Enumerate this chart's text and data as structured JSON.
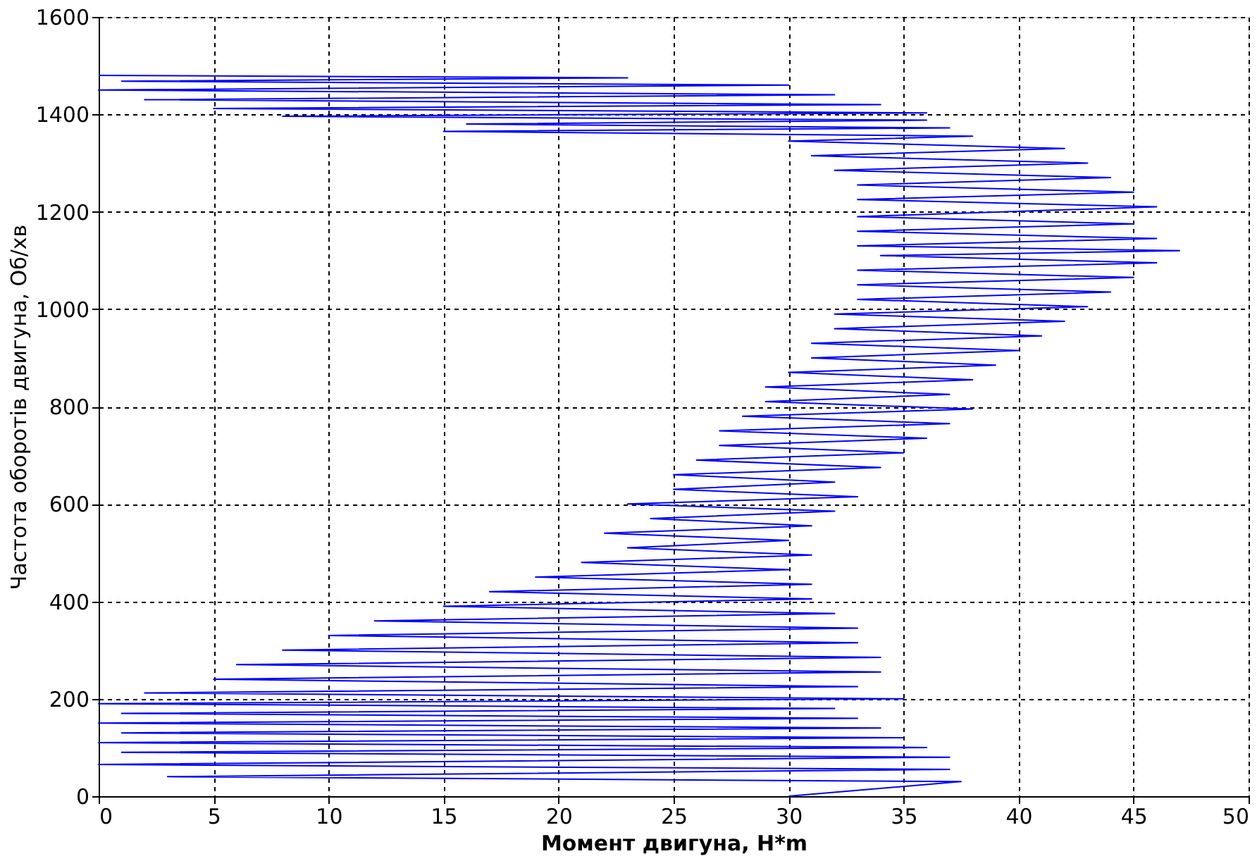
{
  "chart_data": {
    "type": "line",
    "xlabel": "Момент двигуна, Н*m",
    "ylabel": "Частота оборотів двигуна, Об/хв",
    "xlim": [
      0,
      50
    ],
    "xticks": [
      0,
      5,
      10,
      15,
      20,
      25,
      30,
      35,
      40,
      45,
      50
    ],
    "ylim": [
      0,
      1600
    ],
    "yticks": [
      0,
      200,
      400,
      600,
      800,
      1000,
      1200,
      1400,
      1600
    ],
    "grid": true,
    "marker": "none",
    "line_style": "solid",
    "series": [
      {
        "color": "#0000ff",
        "x": [
          30,
          37.5,
          3,
          37,
          0,
          37,
          1,
          36,
          0,
          35,
          1,
          34,
          0,
          33,
          1,
          32,
          0,
          35,
          2,
          33,
          5,
          34,
          6,
          34,
          8,
          33,
          10,
          33,
          12,
          32,
          15,
          31,
          17,
          31,
          19,
          30,
          21,
          31,
          23,
          30,
          22,
          31,
          24,
          32,
          23,
          33,
          25,
          32,
          25,
          34,
          26,
          35,
          27,
          36,
          27,
          37,
          28,
          38,
          29,
          37,
          29,
          38,
          30,
          39,
          31,
          40,
          31,
          41,
          32,
          42,
          32,
          43,
          33,
          44,
          33,
          45,
          33,
          46,
          34,
          47,
          33,
          46,
          33,
          45,
          33,
          46,
          33,
          45,
          33,
          44,
          32,
          43,
          31,
          42,
          30,
          38,
          15,
          37,
          16,
          36,
          8,
          36,
          5,
          34,
          2,
          32,
          0,
          30,
          1,
          23,
          0
        ],
        "values": [
          0,
          30,
          40,
          55,
          65,
          80,
          90,
          100,
          110,
          120,
          130,
          140,
          150,
          160,
          170,
          180,
          190,
          200,
          212,
          225,
          240,
          255,
          270,
          285,
          300,
          315,
          330,
          345,
          360,
          375,
          390,
          405,
          420,
          435,
          450,
          465,
          480,
          495,
          510,
          525,
          540,
          555,
          570,
          585,
          600,
          615,
          630,
          645,
          660,
          675,
          690,
          705,
          720,
          735,
          750,
          765,
          780,
          795,
          810,
          825,
          840,
          855,
          870,
          885,
          900,
          915,
          930,
          945,
          960,
          975,
          990,
          1005,
          1020,
          1035,
          1050,
          1065,
          1080,
          1095,
          1110,
          1120,
          1130,
          1145,
          1160,
          1175,
          1190,
          1210,
          1225,
          1240,
          1255,
          1270,
          1285,
          1300,
          1315,
          1330,
          1345,
          1355,
          1365,
          1372,
          1380,
          1388,
          1396,
          1403,
          1412,
          1420,
          1430,
          1440,
          1450,
          1460,
          1468,
          1475,
          1480
        ]
      }
    ]
  }
}
